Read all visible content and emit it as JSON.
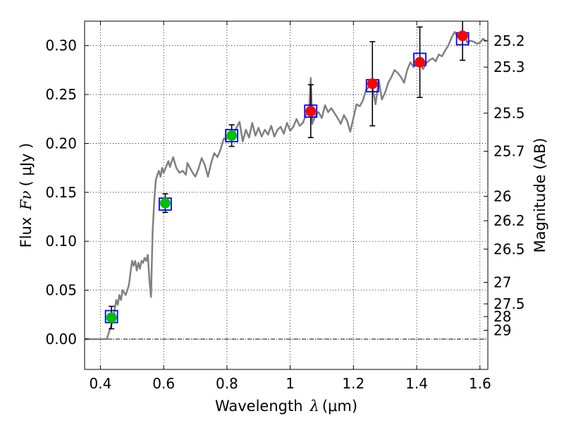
{
  "chart_data": {
    "type": "scatter",
    "xlabel": "Wavelength",
    "xlabel_symbol": "λ",
    "xlabel_unit": "(μm)",
    "ylabel": "Flux",
    "ylabel_symbol": "Fν",
    "ylabel_unit": "( μJy )",
    "y2label": "Magnitude (AB)",
    "xlim": [
      0.35,
      1.625
    ],
    "ylim": [
      -0.031,
      0.325
    ],
    "grid": true,
    "xticks": [
      0.4,
      0.6,
      0.8,
      1.0,
      1.2,
      1.4,
      1.6
    ],
    "xtick_labels": [
      "0.4",
      "0.6",
      "0.8",
      "1",
      "1.2",
      "1.4",
      "1.6"
    ],
    "yticks": [
      0.0,
      0.05,
      0.1,
      0.15,
      0.2,
      0.25,
      0.3
    ],
    "ytick_labels": [
      "0.00",
      "0.05",
      "0.10",
      "0.15",
      "0.20",
      "0.25",
      "0.30"
    ],
    "mag_ticks": [
      {
        "label": "25.2",
        "flux": 0.305
      },
      {
        "label": "25.3",
        "flux": 0.278
      },
      {
        "label": "25.5",
        "flux": 0.231
      },
      {
        "label": "25.7",
        "flux": 0.192
      },
      {
        "label": "26",
        "flux": 0.146
      },
      {
        "label": "26.2",
        "flux": 0.121
      },
      {
        "label": "26.5",
        "flux": 0.092
      },
      {
        "label": "27",
        "flux": 0.058
      },
      {
        "label": "27.5",
        "flux": 0.036
      },
      {
        "label": "28",
        "flux": 0.023
      },
      {
        "label": "29",
        "flux": 0.009
      }
    ],
    "series": [
      {
        "name": "model_spectrum",
        "style": "line",
        "color": "#808080",
        "points": [
          [
            0.35,
            0.0
          ],
          [
            0.42,
            0.0
          ],
          [
            0.43,
            0.01
          ],
          [
            0.44,
            0.02
          ],
          [
            0.445,
            0.03
          ],
          [
            0.45,
            0.04
          ],
          [
            0.455,
            0.035
          ],
          [
            0.46,
            0.045
          ],
          [
            0.465,
            0.04
          ],
          [
            0.47,
            0.05
          ],
          [
            0.48,
            0.045
          ],
          [
            0.49,
            0.055
          ],
          [
            0.5,
            0.08
          ],
          [
            0.505,
            0.075
          ],
          [
            0.51,
            0.08
          ],
          [
            0.515,
            0.07
          ],
          [
            0.52,
            0.078
          ],
          [
            0.525,
            0.072
          ],
          [
            0.53,
            0.08
          ],
          [
            0.535,
            0.078
          ],
          [
            0.54,
            0.083
          ],
          [
            0.545,
            0.08
          ],
          [
            0.55,
            0.086
          ],
          [
            0.555,
            0.06
          ],
          [
            0.56,
            0.043
          ],
          [
            0.565,
            0.11
          ],
          [
            0.57,
            0.14
          ],
          [
            0.575,
            0.162
          ],
          [
            0.58,
            0.168
          ],
          [
            0.585,
            0.172
          ],
          [
            0.59,
            0.166
          ],
          [
            0.595,
            0.175
          ],
          [
            0.6,
            0.17
          ],
          [
            0.61,
            0.178
          ],
          [
            0.615,
            0.182
          ],
          [
            0.62,
            0.176
          ],
          [
            0.63,
            0.186
          ],
          [
            0.64,
            0.175
          ],
          [
            0.65,
            0.17
          ],
          [
            0.66,
            0.172
          ],
          [
            0.67,
            0.168
          ],
          [
            0.675,
            0.18
          ],
          [
            0.68,
            0.177
          ],
          [
            0.69,
            0.171
          ],
          [
            0.7,
            0.166
          ],
          [
            0.71,
            0.174
          ],
          [
            0.72,
            0.185
          ],
          [
            0.73,
            0.178
          ],
          [
            0.74,
            0.166
          ],
          [
            0.75,
            0.18
          ],
          [
            0.76,
            0.19
          ],
          [
            0.77,
            0.186
          ],
          [
            0.78,
            0.194
          ],
          [
            0.79,
            0.205
          ],
          [
            0.8,
            0.205
          ],
          [
            0.81,
            0.212
          ],
          [
            0.82,
            0.208
          ],
          [
            0.83,
            0.216
          ],
          [
            0.84,
            0.222
          ],
          [
            0.85,
            0.202
          ],
          [
            0.86,
            0.214
          ],
          [
            0.87,
            0.206
          ],
          [
            0.88,
            0.221
          ],
          [
            0.89,
            0.208
          ],
          [
            0.9,
            0.216
          ],
          [
            0.91,
            0.207
          ],
          [
            0.92,
            0.214
          ],
          [
            0.93,
            0.209
          ],
          [
            0.94,
            0.218
          ],
          [
            0.95,
            0.207
          ],
          [
            0.96,
            0.214
          ],
          [
            0.97,
            0.217
          ],
          [
            0.98,
            0.21
          ],
          [
            0.99,
            0.221
          ],
          [
            1.0,
            0.213
          ],
          [
            1.01,
            0.217
          ],
          [
            1.02,
            0.225
          ],
          [
            1.03,
            0.218
          ],
          [
            1.04,
            0.221
          ],
          [
            1.05,
            0.229
          ],
          [
            1.06,
            0.235
          ],
          [
            1.065,
            0.267
          ],
          [
            1.07,
            0.22
          ],
          [
            1.08,
            0.229
          ],
          [
            1.09,
            0.232
          ],
          [
            1.1,
            0.226
          ],
          [
            1.11,
            0.239
          ],
          [
            1.12,
            0.232
          ],
          [
            1.13,
            0.236
          ],
          [
            1.14,
            0.231
          ],
          [
            1.15,
            0.226
          ],
          [
            1.16,
            0.22
          ],
          [
            1.17,
            0.229
          ],
          [
            1.18,
            0.223
          ],
          [
            1.19,
            0.212
          ],
          [
            1.2,
            0.226
          ],
          [
            1.21,
            0.24
          ],
          [
            1.22,
            0.238
          ],
          [
            1.23,
            0.244
          ],
          [
            1.24,
            0.255
          ],
          [
            1.25,
            0.258
          ],
          [
            1.26,
            0.258
          ],
          [
            1.27,
            0.24
          ],
          [
            1.28,
            0.265
          ],
          [
            1.29,
            0.245
          ],
          [
            1.3,
            0.252
          ],
          [
            1.31,
            0.262
          ],
          [
            1.32,
            0.268
          ],
          [
            1.33,
            0.275
          ],
          [
            1.34,
            0.272
          ],
          [
            1.35,
            0.268
          ],
          [
            1.36,
            0.262
          ],
          [
            1.37,
            0.275
          ],
          [
            1.38,
            0.283
          ],
          [
            1.39,
            0.278
          ],
          [
            1.4,
            0.281
          ],
          [
            1.41,
            0.284
          ],
          [
            1.42,
            0.276
          ],
          [
            1.43,
            0.282
          ],
          [
            1.44,
            0.285
          ],
          [
            1.45,
            0.287
          ],
          [
            1.46,
            0.284
          ],
          [
            1.47,
            0.291
          ],
          [
            1.48,
            0.289
          ],
          [
            1.49,
            0.295
          ],
          [
            1.5,
            0.3
          ],
          [
            1.51,
            0.308
          ],
          [
            1.52,
            0.314
          ],
          [
            1.53,
            0.309
          ],
          [
            1.54,
            0.313
          ],
          [
            1.55,
            0.311
          ],
          [
            1.56,
            0.303
          ],
          [
            1.57,
            0.305
          ],
          [
            1.58,
            0.304
          ],
          [
            1.59,
            0.302
          ],
          [
            1.6,
            0.303
          ],
          [
            1.61,
            0.307
          ],
          [
            1.62,
            0.304
          ]
        ]
      },
      {
        "name": "model_photometry",
        "style": "open-square",
        "color": "#0000ff",
        "points": [
          [
            0.435,
            0.023
          ],
          [
            0.605,
            0.138
          ],
          [
            0.815,
            0.208
          ],
          [
            1.065,
            0.233
          ],
          [
            1.26,
            0.259
          ],
          [
            1.41,
            0.286
          ],
          [
            1.545,
            0.307
          ]
        ]
      },
      {
        "name": "observed_optical",
        "style": "filled-circle",
        "color": "#00bf00",
        "points": [
          [
            0.435,
            0.022
          ],
          [
            0.605,
            0.139
          ],
          [
            0.815,
            0.208
          ]
        ],
        "errors": [
          0.0115,
          0.0095,
          0.011
        ]
      },
      {
        "name": "observed_nir",
        "style": "filled-circle",
        "color": "#ff0000",
        "points": [
          [
            1.065,
            0.233
          ],
          [
            1.26,
            0.261
          ],
          [
            1.41,
            0.283
          ],
          [
            1.545,
            0.31
          ]
        ],
        "errors": [
          0.027,
          0.043,
          0.036,
          0.025
        ]
      }
    ]
  }
}
